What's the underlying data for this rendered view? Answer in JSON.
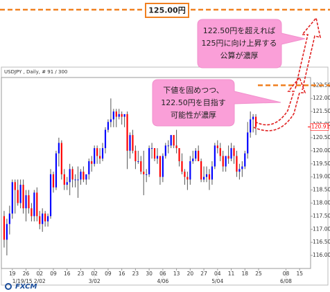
{
  "chart_data": {
    "type": "candlestick",
    "title": "USDJPY , Daily, # 91 / 300",
    "x": [
      "2015-01-14",
      "2015-01-15",
      "2015-01-16",
      "2015-01-19",
      "2015-01-20",
      "2015-01-21",
      "2015-01-22",
      "2015-01-23",
      "2015-01-26",
      "2015-01-27",
      "2015-01-28",
      "2015-01-29",
      "2015-01-30",
      "2015-02-02",
      "2015-02-03",
      "2015-02-04",
      "2015-02-05",
      "2015-02-06",
      "2015-02-09",
      "2015-02-10",
      "2015-02-11",
      "2015-02-12",
      "2015-02-13",
      "2015-02-16",
      "2015-02-17",
      "2015-02-18",
      "2015-02-19",
      "2015-02-20",
      "2015-02-23",
      "2015-02-24",
      "2015-02-25",
      "2015-02-26",
      "2015-02-27",
      "2015-03-02",
      "2015-03-03",
      "2015-03-04",
      "2015-03-05",
      "2015-03-06",
      "2015-03-09",
      "2015-03-10",
      "2015-03-11",
      "2015-03-12",
      "2015-03-13",
      "2015-03-16",
      "2015-03-17",
      "2015-03-18",
      "2015-03-19",
      "2015-03-20",
      "2015-03-23",
      "2015-03-24",
      "2015-03-25",
      "2015-03-26",
      "2015-03-27",
      "2015-03-30",
      "2015-03-31",
      "2015-04-01",
      "2015-04-02",
      "2015-04-03",
      "2015-04-06",
      "2015-04-07",
      "2015-04-08",
      "2015-04-09",
      "2015-04-10",
      "2015-04-13",
      "2015-04-14",
      "2015-04-15",
      "2015-04-16",
      "2015-04-17",
      "2015-04-20",
      "2015-04-21",
      "2015-04-22",
      "2015-04-23",
      "2015-04-24",
      "2015-04-27",
      "2015-04-28",
      "2015-04-29",
      "2015-04-30",
      "2015-05-01",
      "2015-05-04",
      "2015-05-05",
      "2015-05-06",
      "2015-05-07",
      "2015-05-08",
      "2015-05-11",
      "2015-05-12",
      "2015-05-13",
      "2015-05-14",
      "2015-05-15",
      "2015-05-18",
      "2015-05-19",
      "2015-05-20",
      "2015-05-21",
      "2015-05-22"
    ],
    "open": [
      117.5,
      116.6,
      117.2,
      117.6,
      118.8,
      118.5,
      118.0,
      118.7,
      117.8,
      118.3,
      117.8,
      117.5,
      118.4,
      117.5,
      117.2,
      117.6,
      117.3,
      117.5,
      119.1,
      118.6,
      119.9,
      120.3,
      119.1,
      118.7,
      118.8,
      119.3,
      118.9,
      118.9,
      118.9,
      119.2,
      118.9,
      119.1,
      119.6,
      119.5,
      120.1,
      119.8,
      119.7,
      120.1,
      120.8,
      121.1,
      121.2,
      121.5,
      121.3,
      121.4,
      121.3,
      121.4,
      120.0,
      120.6,
      120.0,
      119.6,
      119.6,
      119.2,
      119.1,
      119.1,
      120.1,
      120.1,
      119.7,
      119.8,
      119.0,
      119.8,
      120.2,
      120.2,
      120.6,
      120.2,
      120.1,
      119.6,
      119.2,
      119.0,
      118.9,
      119.6,
      119.7,
      120.0,
      119.6,
      118.9,
      119.0,
      119.1,
      118.9,
      119.4,
      120.2,
      120.1,
      119.8,
      119.4,
      119.8,
      119.7,
      120.1,
      119.8,
      119.2,
      119.3,
      119.4,
      119.9,
      120.7,
      121.2,
      121.3
    ],
    "high": [
      117.7,
      117.4,
      117.9,
      118.9,
      118.9,
      118.9,
      118.9,
      118.9,
      118.5,
      118.5,
      118.0,
      118.5,
      118.6,
      117.7,
      117.8,
      117.7,
      117.6,
      119.3,
      119.2,
      120.0,
      120.5,
      120.4,
      119.3,
      119.0,
      119.5,
      119.4,
      119.1,
      119.4,
      119.3,
      119.4,
      119.1,
      119.7,
      119.8,
      120.2,
      120.2,
      120.1,
      120.3,
      120.9,
      121.2,
      122.0,
      121.6,
      121.6,
      121.6,
      121.5,
      121.4,
      121.5,
      120.7,
      120.8,
      120.2,
      120.0,
      119.8,
      120.0,
      119.3,
      120.2,
      120.3,
      120.1,
      120.1,
      119.8,
      119.9,
      120.3,
      120.4,
      120.6,
      120.6,
      120.8,
      120.1,
      119.9,
      119.3,
      119.2,
      119.8,
      120.0,
      120.1,
      120.2,
      119.7,
      119.4,
      119.4,
      119.3,
      119.6,
      120.3,
      120.4,
      120.3,
      120.0,
      119.8,
      120.2,
      120.3,
      120.2,
      120.0,
      119.5,
      119.6,
      120.0,
      121.1,
      121.5,
      121.4,
      121.4
    ],
    "low": [
      116.3,
      116.0,
      116.8,
      117.4,
      117.6,
      117.9,
      117.8,
      117.6,
      117.3,
      117.6,
      117.3,
      117.3,
      117.3,
      117.0,
      116.9,
      117.1,
      117.1,
      117.4,
      118.4,
      118.5,
      119.4,
      118.9,
      118.5,
      118.5,
      118.3,
      118.6,
      118.6,
      118.2,
      118.7,
      118.8,
      118.7,
      118.9,
      119.2,
      119.4,
      119.5,
      119.5,
      119.6,
      119.9,
      120.7,
      120.9,
      120.9,
      120.9,
      121.2,
      121.0,
      120.9,
      119.3,
      119.7,
      119.9,
      119.3,
      119.5,
      119.1,
      118.3,
      118.8,
      119.0,
      119.7,
      119.6,
      119.5,
      118.7,
      118.8,
      119.7,
      119.9,
      120.1,
      120.1,
      119.9,
      119.4,
      119.1,
      118.7,
      118.5,
      118.7,
      119.5,
      119.6,
      119.6,
      118.8,
      118.8,
      118.8,
      118.5,
      118.7,
      119.3,
      119.9,
      119.6,
      119.2,
      119.2,
      119.5,
      119.6,
      119.5,
      119.0,
      118.9,
      119.0,
      119.3,
      119.7,
      120.5,
      120.7,
      120.6
    ],
    "close": [
      116.6,
      117.2,
      117.6,
      118.8,
      118.5,
      118.0,
      118.7,
      117.8,
      118.3,
      117.8,
      117.5,
      118.4,
      117.5,
      117.2,
      117.6,
      117.3,
      117.5,
      119.1,
      118.6,
      119.9,
      120.3,
      119.1,
      118.7,
      118.8,
      119.3,
      118.9,
      118.9,
      118.9,
      119.2,
      118.9,
      119.1,
      119.6,
      119.5,
      120.1,
      119.8,
      119.7,
      120.1,
      120.8,
      121.1,
      121.2,
      121.5,
      121.3,
      121.4,
      121.3,
      121.4,
      120.0,
      120.6,
      120.0,
      119.6,
      119.6,
      119.2,
      119.1,
      119.1,
      120.1,
      120.1,
      119.7,
      119.8,
      119.0,
      119.8,
      120.2,
      120.2,
      120.6,
      120.2,
      120.1,
      119.6,
      119.2,
      119.0,
      118.9,
      119.6,
      119.7,
      120.0,
      119.6,
      118.9,
      119.0,
      119.1,
      118.9,
      119.4,
      120.2,
      120.1,
      119.8,
      119.4,
      119.8,
      119.7,
      120.1,
      119.8,
      119.2,
      119.3,
      119.4,
      119.9,
      120.7,
      121.2,
      121.3,
      120.912
    ],
    "up_color": "#0000ff",
    "down_color": "#ff0000",
    "wick_color": "#555555",
    "last_price": {
      "value": 120.912,
      "label": "120.9120"
    },
    "last_price_color": "#ff0000",
    "xlim": [
      "2015-01-13",
      "2015-06-19"
    ],
    "xticks": [
      {
        "value": "2015-01-19",
        "label": "19"
      },
      {
        "value": "2015-01-26",
        "label": "26"
      },
      {
        "value": "2015-02-02",
        "label": "02"
      },
      {
        "value": "2015-02-09",
        "label": "09"
      },
      {
        "value": "2015-02-16",
        "label": "16"
      },
      {
        "value": "2015-02-23",
        "label": "23"
      },
      {
        "value": "2015-03-02",
        "label": "02"
      },
      {
        "value": "2015-03-09",
        "label": "09"
      },
      {
        "value": "2015-03-16",
        "label": "16"
      },
      {
        "value": "2015-03-23",
        "label": "23"
      },
      {
        "value": "2015-03-30",
        "label": "30"
      },
      {
        "value": "2015-04-06",
        "label": "06"
      },
      {
        "value": "2015-04-13",
        "label": "13"
      },
      {
        "value": "2015-04-20",
        "label": "20"
      },
      {
        "value": "2015-04-27",
        "label": "27"
      },
      {
        "value": "2015-05-04",
        "label": "04"
      },
      {
        "value": "2015-05-11",
        "label": "11"
      },
      {
        "value": "2015-05-18",
        "label": "18"
      },
      {
        "value": "2015-05-25",
        "label": "25"
      },
      {
        "value": "2015-06-08",
        "label": "08"
      },
      {
        "value": "2015-06-15",
        "label": "15"
      }
    ],
    "month_labels": [
      {
        "value": "2015-01-19",
        "label": "1/19/15"
      },
      {
        "value": "2015-02-02",
        "label": "2/02"
      },
      {
        "value": "2015-03-02",
        "label": "3/02"
      },
      {
        "value": "2015-04-06",
        "label": "4/06"
      },
      {
        "value": "2015-05-04",
        "label": "5/04"
      },
      {
        "value": "2015-06-08",
        "label": "6/08"
      }
    ],
    "ylim": [
      115.5,
      122.8
    ],
    "yticks": [
      {
        "value": 116,
        "label": "116.000"
      },
      {
        "value": 116.5,
        "label": "116.500"
      },
      {
        "value": 117,
        "label": "117.000"
      },
      {
        "value": 117.5,
        "label": "117.500"
      },
      {
        "value": 118,
        "label": "118.000"
      },
      {
        "value": 118.5,
        "label": "118.500"
      },
      {
        "value": 119,
        "label": "119.000"
      },
      {
        "value": 119.5,
        "label": "119.500"
      },
      {
        "value": 120,
        "label": "120.000"
      },
      {
        "value": 120.5,
        "label": "120.500"
      },
      {
        "value": 121,
        "label": "121.000"
      },
      {
        "value": 121.5,
        "label": "121.500"
      },
      {
        "value": 122,
        "label": "122.000"
      },
      {
        "value": 122.5,
        "label": "122.500"
      }
    ],
    "grid": false,
    "target_label": "125.00円",
    "annotations": [
      {
        "lines": [
          "122.50円を超えれば",
          "125円に向け上昇する",
          "公算が濃厚"
        ]
      },
      {
        "lines": [
          "下値を固めつつ、",
          "122.50円を目指す",
          "可能性が濃厚"
        ]
      }
    ],
    "logo": "FXCM"
  }
}
